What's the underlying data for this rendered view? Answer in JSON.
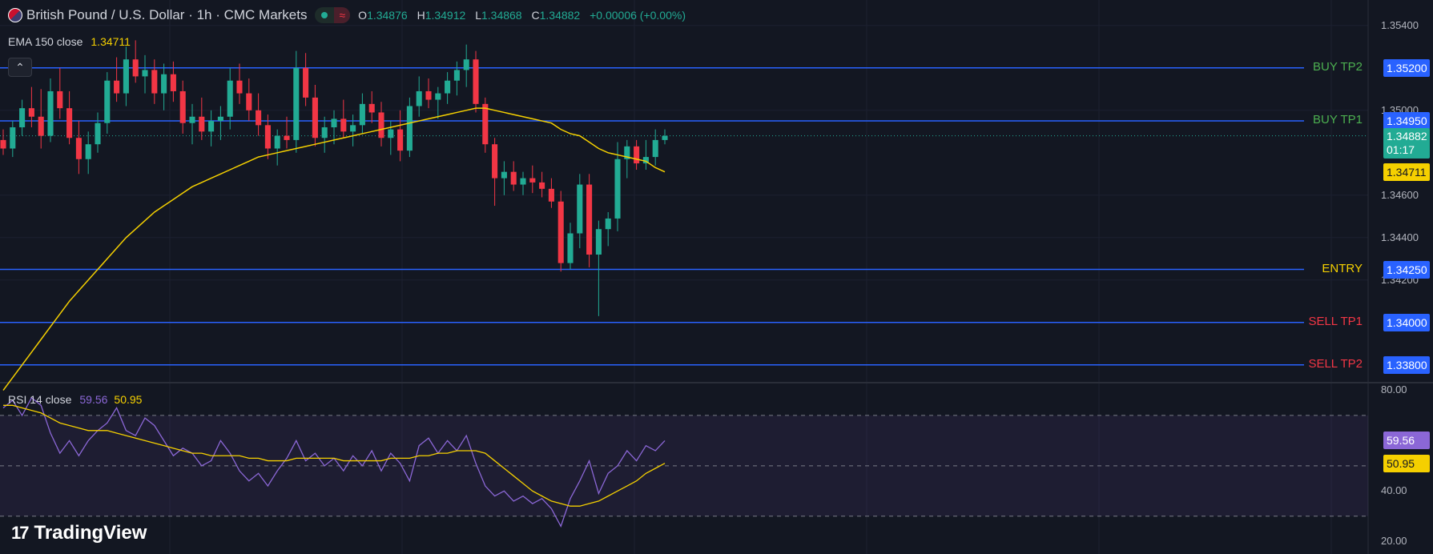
{
  "header": {
    "symbol": "British Pound / U.S. Dollar · 1h · CMC Markets",
    "wave_icon": "≈",
    "ohlc": {
      "o_key": "O",
      "o": "1.34876",
      "h_key": "H",
      "h": "1.34912",
      "l_key": "L",
      "l": "1.34868",
      "c_key": "C",
      "c": "1.34882",
      "change": "+0.00006 (+0.00%)"
    }
  },
  "ema": {
    "label": "EMA 150 close",
    "value": "1.34711"
  },
  "rsi": {
    "label": "RSI 14 close",
    "value": "59.56",
    "ma_value": "50.95"
  },
  "brand": {
    "logo": "17",
    "name": "TradingView"
  },
  "price_axis": {
    "ticks": [
      "1.35400",
      "1.35000",
      "1.34600",
      "1.34400",
      "1.34200"
    ],
    "tick_values": [
      1.354,
      1.35,
      1.346,
      1.344,
      1.342
    ]
  },
  "rsi_axis": {
    "ticks": [
      "80.00",
      "40.00",
      "20.00"
    ],
    "tick_values": [
      80,
      40,
      20
    ]
  },
  "current_price": {
    "value": "1.34882",
    "countdown": "01:17"
  },
  "levels": [
    {
      "name": "BUY TP2",
      "price": 1.352,
      "price_label": "1.35200",
      "color": "#4caf50"
    },
    {
      "name": "BUY TP1",
      "price": 1.3495,
      "price_label": "1.34950",
      "color": "#4caf50"
    },
    {
      "name": "ENTRY",
      "price": 1.3425,
      "price_label": "1.34250",
      "color": "#f5d000"
    },
    {
      "name": "SELL TP1",
      "price": 1.34,
      "price_label": "1.34000",
      "color": "#f23645"
    },
    {
      "name": "SELL TP2",
      "price": 1.338,
      "price_label": "1.33800",
      "color": "#f23645"
    }
  ],
  "colors": {
    "up": "#22ab94",
    "down": "#f23645",
    "ema": "#f5d000",
    "level_line": "#2962ff",
    "rsi": "#8b67d6",
    "rsi_ma": "#f5d000",
    "background": "#131722"
  },
  "chart_data": [
    {
      "type": "candlestick",
      "title": "British Pound / U.S. Dollar · 1h · CMC Markets",
      "ylim": [
        1.3372,
        1.3552
      ],
      "candles": [
        [
          1.3486,
          1.3491,
          1.3479,
          1.3482
        ],
        [
          1.3482,
          1.3495,
          1.3478,
          1.3492
        ],
        [
          1.3492,
          1.3505,
          1.3488,
          1.3501
        ],
        [
          1.3501,
          1.3511,
          1.3492,
          1.3497
        ],
        [
          1.3497,
          1.351,
          1.3482,
          1.3488
        ],
        [
          1.3488,
          1.3515,
          1.3485,
          1.3509
        ],
        [
          1.3509,
          1.352,
          1.3496,
          1.3501
        ],
        [
          1.3501,
          1.3509,
          1.3484,
          1.3487
        ],
        [
          1.3487,
          1.3495,
          1.347,
          1.3477
        ],
        [
          1.3477,
          1.349,
          1.347,
          1.3484
        ],
        [
          1.3484,
          1.3499,
          1.348,
          1.3494
        ],
        [
          1.3494,
          1.3518,
          1.3489,
          1.3514
        ],
        [
          1.3514,
          1.3525,
          1.3504,
          1.3508
        ],
        [
          1.3508,
          1.353,
          1.3502,
          1.3524
        ],
        [
          1.3524,
          1.3533,
          1.3513,
          1.3516
        ],
        [
          1.3516,
          1.3526,
          1.3508,
          1.3519
        ],
        [
          1.3519,
          1.3524,
          1.3503,
          1.3508
        ],
        [
          1.3508,
          1.3522,
          1.35,
          1.3517
        ],
        [
          1.3517,
          1.3523,
          1.3504,
          1.3509
        ],
        [
          1.3509,
          1.3514,
          1.3489,
          1.3494
        ],
        [
          1.3494,
          1.3503,
          1.3484,
          1.3497
        ],
        [
          1.3497,
          1.3506,
          1.3486,
          1.349
        ],
        [
          1.349,
          1.35,
          1.3483,
          1.3495
        ],
        [
          1.3495,
          1.3502,
          1.3486,
          1.3497
        ],
        [
          1.3497,
          1.352,
          1.3491,
          1.3514
        ],
        [
          1.3514,
          1.3522,
          1.3503,
          1.3508
        ],
        [
          1.3508,
          1.3515,
          1.3495,
          1.35
        ],
        [
          1.35,
          1.3508,
          1.3488,
          1.3493
        ],
        [
          1.3493,
          1.3498,
          1.3477,
          1.3482
        ],
        [
          1.3482,
          1.3491,
          1.3474,
          1.3488
        ],
        [
          1.3488,
          1.3497,
          1.3482,
          1.3486
        ],
        [
          1.3486,
          1.3528,
          1.348,
          1.352
        ],
        [
          1.352,
          1.3527,
          1.3502,
          1.3506
        ],
        [
          1.3506,
          1.3512,
          1.3483,
          1.3487
        ],
        [
          1.3487,
          1.3497,
          1.348,
          1.3492
        ],
        [
          1.3492,
          1.35,
          1.3484,
          1.3496
        ],
        [
          1.3496,
          1.3505,
          1.3487,
          1.349
        ],
        [
          1.349,
          1.3498,
          1.3483,
          1.3493
        ],
        [
          1.3493,
          1.3508,
          1.3489,
          1.3503
        ],
        [
          1.3503,
          1.3509,
          1.3494,
          1.3499
        ],
        [
          1.3499,
          1.3504,
          1.3483,
          1.3487
        ],
        [
          1.3487,
          1.3495,
          1.3479,
          1.3491
        ],
        [
          1.3491,
          1.35,
          1.3476,
          1.3481
        ],
        [
          1.3481,
          1.3506,
          1.3478,
          1.3502
        ],
        [
          1.3502,
          1.3516,
          1.3497,
          1.3509
        ],
        [
          1.3509,
          1.3515,
          1.3501,
          1.3505
        ],
        [
          1.3505,
          1.3511,
          1.3496,
          1.3508
        ],
        [
          1.3508,
          1.3518,
          1.3503,
          1.3514
        ],
        [
          1.3514,
          1.3523,
          1.3507,
          1.3519
        ],
        [
          1.3519,
          1.3531,
          1.3511,
          1.3524
        ],
        [
          1.3524,
          1.3528,
          1.3499,
          1.3503
        ],
        [
          1.3503,
          1.3506,
          1.348,
          1.3484
        ],
        [
          1.3484,
          1.3487,
          1.3455,
          1.3468
        ],
        [
          1.3468,
          1.3476,
          1.346,
          1.3471
        ],
        [
          1.3471,
          1.3476,
          1.3462,
          1.3465
        ],
        [
          1.3465,
          1.3471,
          1.346,
          1.3468
        ],
        [
          1.3468,
          1.3474,
          1.3461,
          1.3466
        ],
        [
          1.3466,
          1.3471,
          1.3459,
          1.3463
        ],
        [
          1.3463,
          1.3468,
          1.3454,
          1.3457
        ],
        [
          1.3457,
          1.3462,
          1.3424,
          1.3428
        ],
        [
          1.3428,
          1.3447,
          1.3425,
          1.3442
        ],
        [
          1.3442,
          1.347,
          1.3435,
          1.3465
        ],
        [
          1.3465,
          1.347,
          1.3426,
          1.3432
        ],
        [
          1.3432,
          1.3448,
          1.3403,
          1.3444
        ],
        [
          1.3444,
          1.3452,
          1.3436,
          1.3449
        ],
        [
          1.3449,
          1.3485,
          1.3443,
          1.3477
        ],
        [
          1.3477,
          1.3486,
          1.3468,
          1.3483
        ],
        [
          1.3483,
          1.3486,
          1.3472,
          1.3475
        ],
        [
          1.3475,
          1.3486,
          1.3472,
          1.3478
        ],
        [
          1.3478,
          1.3491,
          1.3474,
          1.3486
        ],
        [
          1.3486,
          1.3491,
          1.3484,
          1.3488
        ]
      ],
      "ema": [
        1.3368,
        1.3374,
        1.338,
        1.3386,
        1.3392,
        1.3398,
        1.3404,
        1.341,
        1.3415,
        1.342,
        1.3425,
        1.343,
        1.3435,
        1.344,
        1.3444,
        1.3448,
        1.3452,
        1.3455,
        1.3458,
        1.3461,
        1.3464,
        1.3466,
        1.3468,
        1.347,
        1.3472,
        1.3474,
        1.3476,
        1.3478,
        1.3479,
        1.348,
        1.3481,
        1.3482,
        1.3483,
        1.3484,
        1.3485,
        1.3486,
        1.3487,
        1.3488,
        1.3489,
        1.349,
        1.3491,
        1.3492,
        1.3493,
        1.3494,
        1.3495,
        1.3496,
        1.3497,
        1.3498,
        1.3499,
        1.35,
        1.3501,
        1.3501,
        1.35,
        1.3499,
        1.3498,
        1.3497,
        1.3496,
        1.3495,
        1.3494,
        1.3491,
        1.3489,
        1.3488,
        1.3485,
        1.3482,
        1.348,
        1.3479,
        1.3478,
        1.3477,
        1.3476,
        1.3473,
        1.3471
      ]
    },
    {
      "type": "line",
      "title": "RSI 14 close",
      "ylim": [
        15,
        83
      ],
      "bands": [
        70,
        30
      ],
      "midline": 50,
      "series": [
        {
          "name": "RSI 14 close",
          "values": [
            73,
            76,
            70,
            77,
            74,
            63,
            55,
            60,
            54,
            60,
            64,
            67,
            73,
            64,
            62,
            69,
            66,
            60,
            54,
            57,
            55,
            50,
            52,
            60,
            55,
            48,
            44,
            47,
            42,
            48,
            53,
            60,
            52,
            55,
            50,
            53,
            48,
            54,
            50,
            56,
            48,
            55,
            51,
            44,
            58,
            61,
            55,
            60,
            56,
            62,
            51,
            42,
            38,
            40,
            36,
            38,
            35,
            37,
            33,
            26,
            37,
            44,
            52,
            39,
            47,
            50,
            56,
            52,
            58,
            56,
            60
          ]
        },
        {
          "name": "RSI MA",
          "values": [
            74,
            74,
            73,
            72,
            71,
            69,
            67,
            66,
            65,
            64,
            64,
            64,
            63,
            62,
            61,
            60,
            59,
            58,
            57,
            56,
            55,
            55,
            54,
            54,
            54,
            54,
            53,
            53,
            52,
            52,
            52,
            53,
            53,
            53,
            53,
            53,
            52,
            52,
            52,
            52,
            52,
            53,
            53,
            53,
            54,
            54,
            55,
            55,
            56,
            56,
            56,
            55,
            52,
            49,
            46,
            43,
            40,
            38,
            36,
            35,
            34,
            34,
            35,
            36,
            38,
            40,
            42,
            44,
            47,
            49,
            51
          ]
        }
      ]
    }
  ]
}
